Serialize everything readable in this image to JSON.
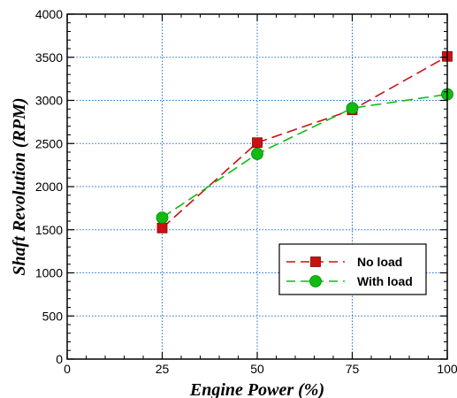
{
  "chart_data": {
    "type": "line",
    "title": "",
    "xlabel": "Engine Power (%)",
    "ylabel": "Shaft Revolution (RPM)",
    "xlim": [
      0,
      100
    ],
    "ylim": [
      0,
      4000
    ],
    "x_ticks": [
      0,
      25,
      50,
      75,
      100
    ],
    "y_ticks": [
      0,
      500,
      1000,
      1500,
      2000,
      2500,
      3000,
      3500,
      4000
    ],
    "grid": true,
    "grid_color": "#1f6fd6",
    "legend_position": "bottom-right",
    "series": [
      {
        "name": "No load",
        "color": "#cc1111",
        "marker": "square",
        "line_style": "dashed",
        "x": [
          25,
          50,
          75,
          100
        ],
        "y": [
          1520,
          2510,
          2890,
          3510
        ]
      },
      {
        "name": "With load",
        "color": "#11bb11",
        "marker": "circle",
        "line_style": "dashed",
        "x": [
          25,
          50,
          75,
          100
        ],
        "y": [
          1640,
          2380,
          2910,
          3070
        ]
      }
    ]
  }
}
